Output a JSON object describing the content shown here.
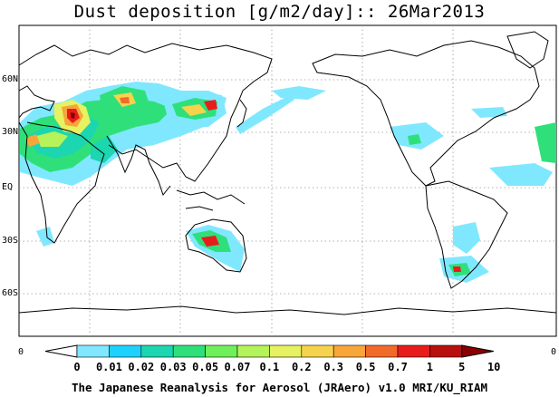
{
  "title": "Dust deposition [g/m2/day]:: 26Mar2013",
  "lat_labels": [
    "60N",
    "30N",
    "EQ",
    "30S",
    "60S"
  ],
  "axis_min_left": "0",
  "axis_min_right": "0",
  "colorbar": {
    "labels": [
      "0",
      "0.01",
      "0.02",
      "0.03",
      "0.05",
      "0.07",
      "0.1",
      "0.2",
      "0.3",
      "0.5",
      "0.7",
      "1",
      "5",
      "10"
    ],
    "colors": [
      "#ffffff",
      "#7fe8ff",
      "#1ed2ff",
      "#1bd6b0",
      "#2fe07a",
      "#6ff05a",
      "#b4f35a",
      "#e6f261",
      "#f6d34c",
      "#f8a53a",
      "#f26a2a",
      "#e91c1c",
      "#b80f0f",
      "#8a0000"
    ]
  },
  "credit": "The Japanese Reanalysis for Aerosol (JRAero) v1.0 MRI/KU_RIAM"
}
